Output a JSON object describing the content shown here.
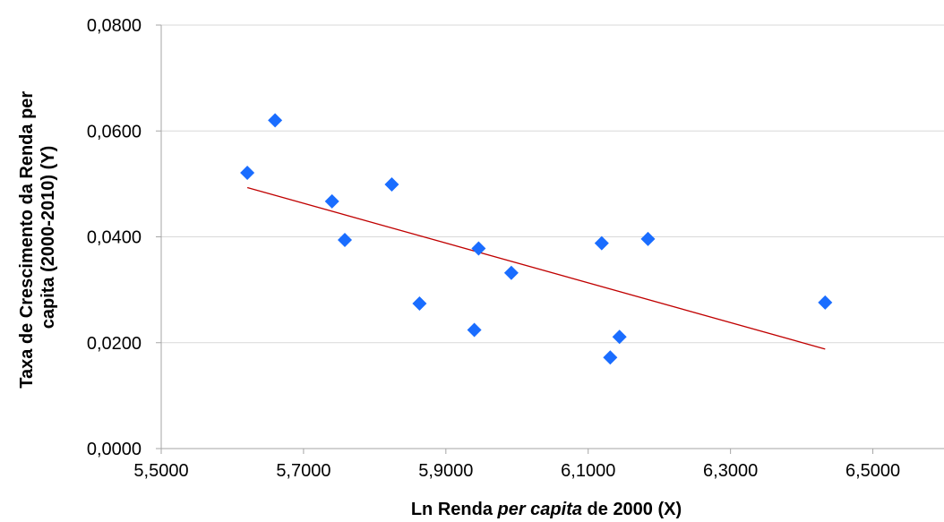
{
  "chart_data": {
    "type": "scatter",
    "xlabel_parts": [
      {
        "text": "Ln Renda ",
        "italic": false
      },
      {
        "text": "per capita",
        "italic": true
      },
      {
        "text": " de 2000 (X)",
        "italic": false
      }
    ],
    "ylabel_line1": "Taxa de Crescimento da Renda per",
    "ylabel_line2": "capita (2000-2010) (Y)",
    "xlim": [
      5.5,
      6.6
    ],
    "ylim": [
      0.0,
      0.08
    ],
    "x_ticks": [
      5.5,
      5.7,
      5.9,
      6.1,
      6.3,
      6.5
    ],
    "x_tick_labels": [
      "5,5000",
      "5,7000",
      "5,9000",
      "6,1000",
      "6,3000",
      "6,5000"
    ],
    "y_ticks": [
      0.0,
      0.02,
      0.04,
      0.06,
      0.08
    ],
    "y_tick_labels": [
      "0,0000",
      "0,0200",
      "0,0400",
      "0,0600",
      "0,0800"
    ],
    "grid": "horizontal",
    "legend": "none",
    "series": [
      {
        "points": [
          {
            "x": 5.621,
            "y": 0.0521
          },
          {
            "x": 5.66,
            "y": 0.062
          },
          {
            "x": 5.74,
            "y": 0.0467
          },
          {
            "x": 5.758,
            "y": 0.0394
          },
          {
            "x": 5.824,
            "y": 0.0499
          },
          {
            "x": 5.863,
            "y": 0.0274
          },
          {
            "x": 5.94,
            "y": 0.0224
          },
          {
            "x": 5.946,
            "y": 0.0378
          },
          {
            "x": 5.992,
            "y": 0.0332
          },
          {
            "x": 6.119,
            "y": 0.0388
          },
          {
            "x": 6.131,
            "y": 0.0172
          },
          {
            "x": 6.144,
            "y": 0.0211
          },
          {
            "x": 6.184,
            "y": 0.0396
          },
          {
            "x": 6.433,
            "y": 0.0276
          }
        ]
      }
    ],
    "trendline": {
      "x1": 5.621,
      "y1": 0.0493,
      "x2": 6.433,
      "y2": 0.0188
    },
    "colors": {
      "marker": "#1a6dff",
      "trendline": "#c00000",
      "grid": "#d9d9d9",
      "axis": "#a6a6a6"
    }
  }
}
